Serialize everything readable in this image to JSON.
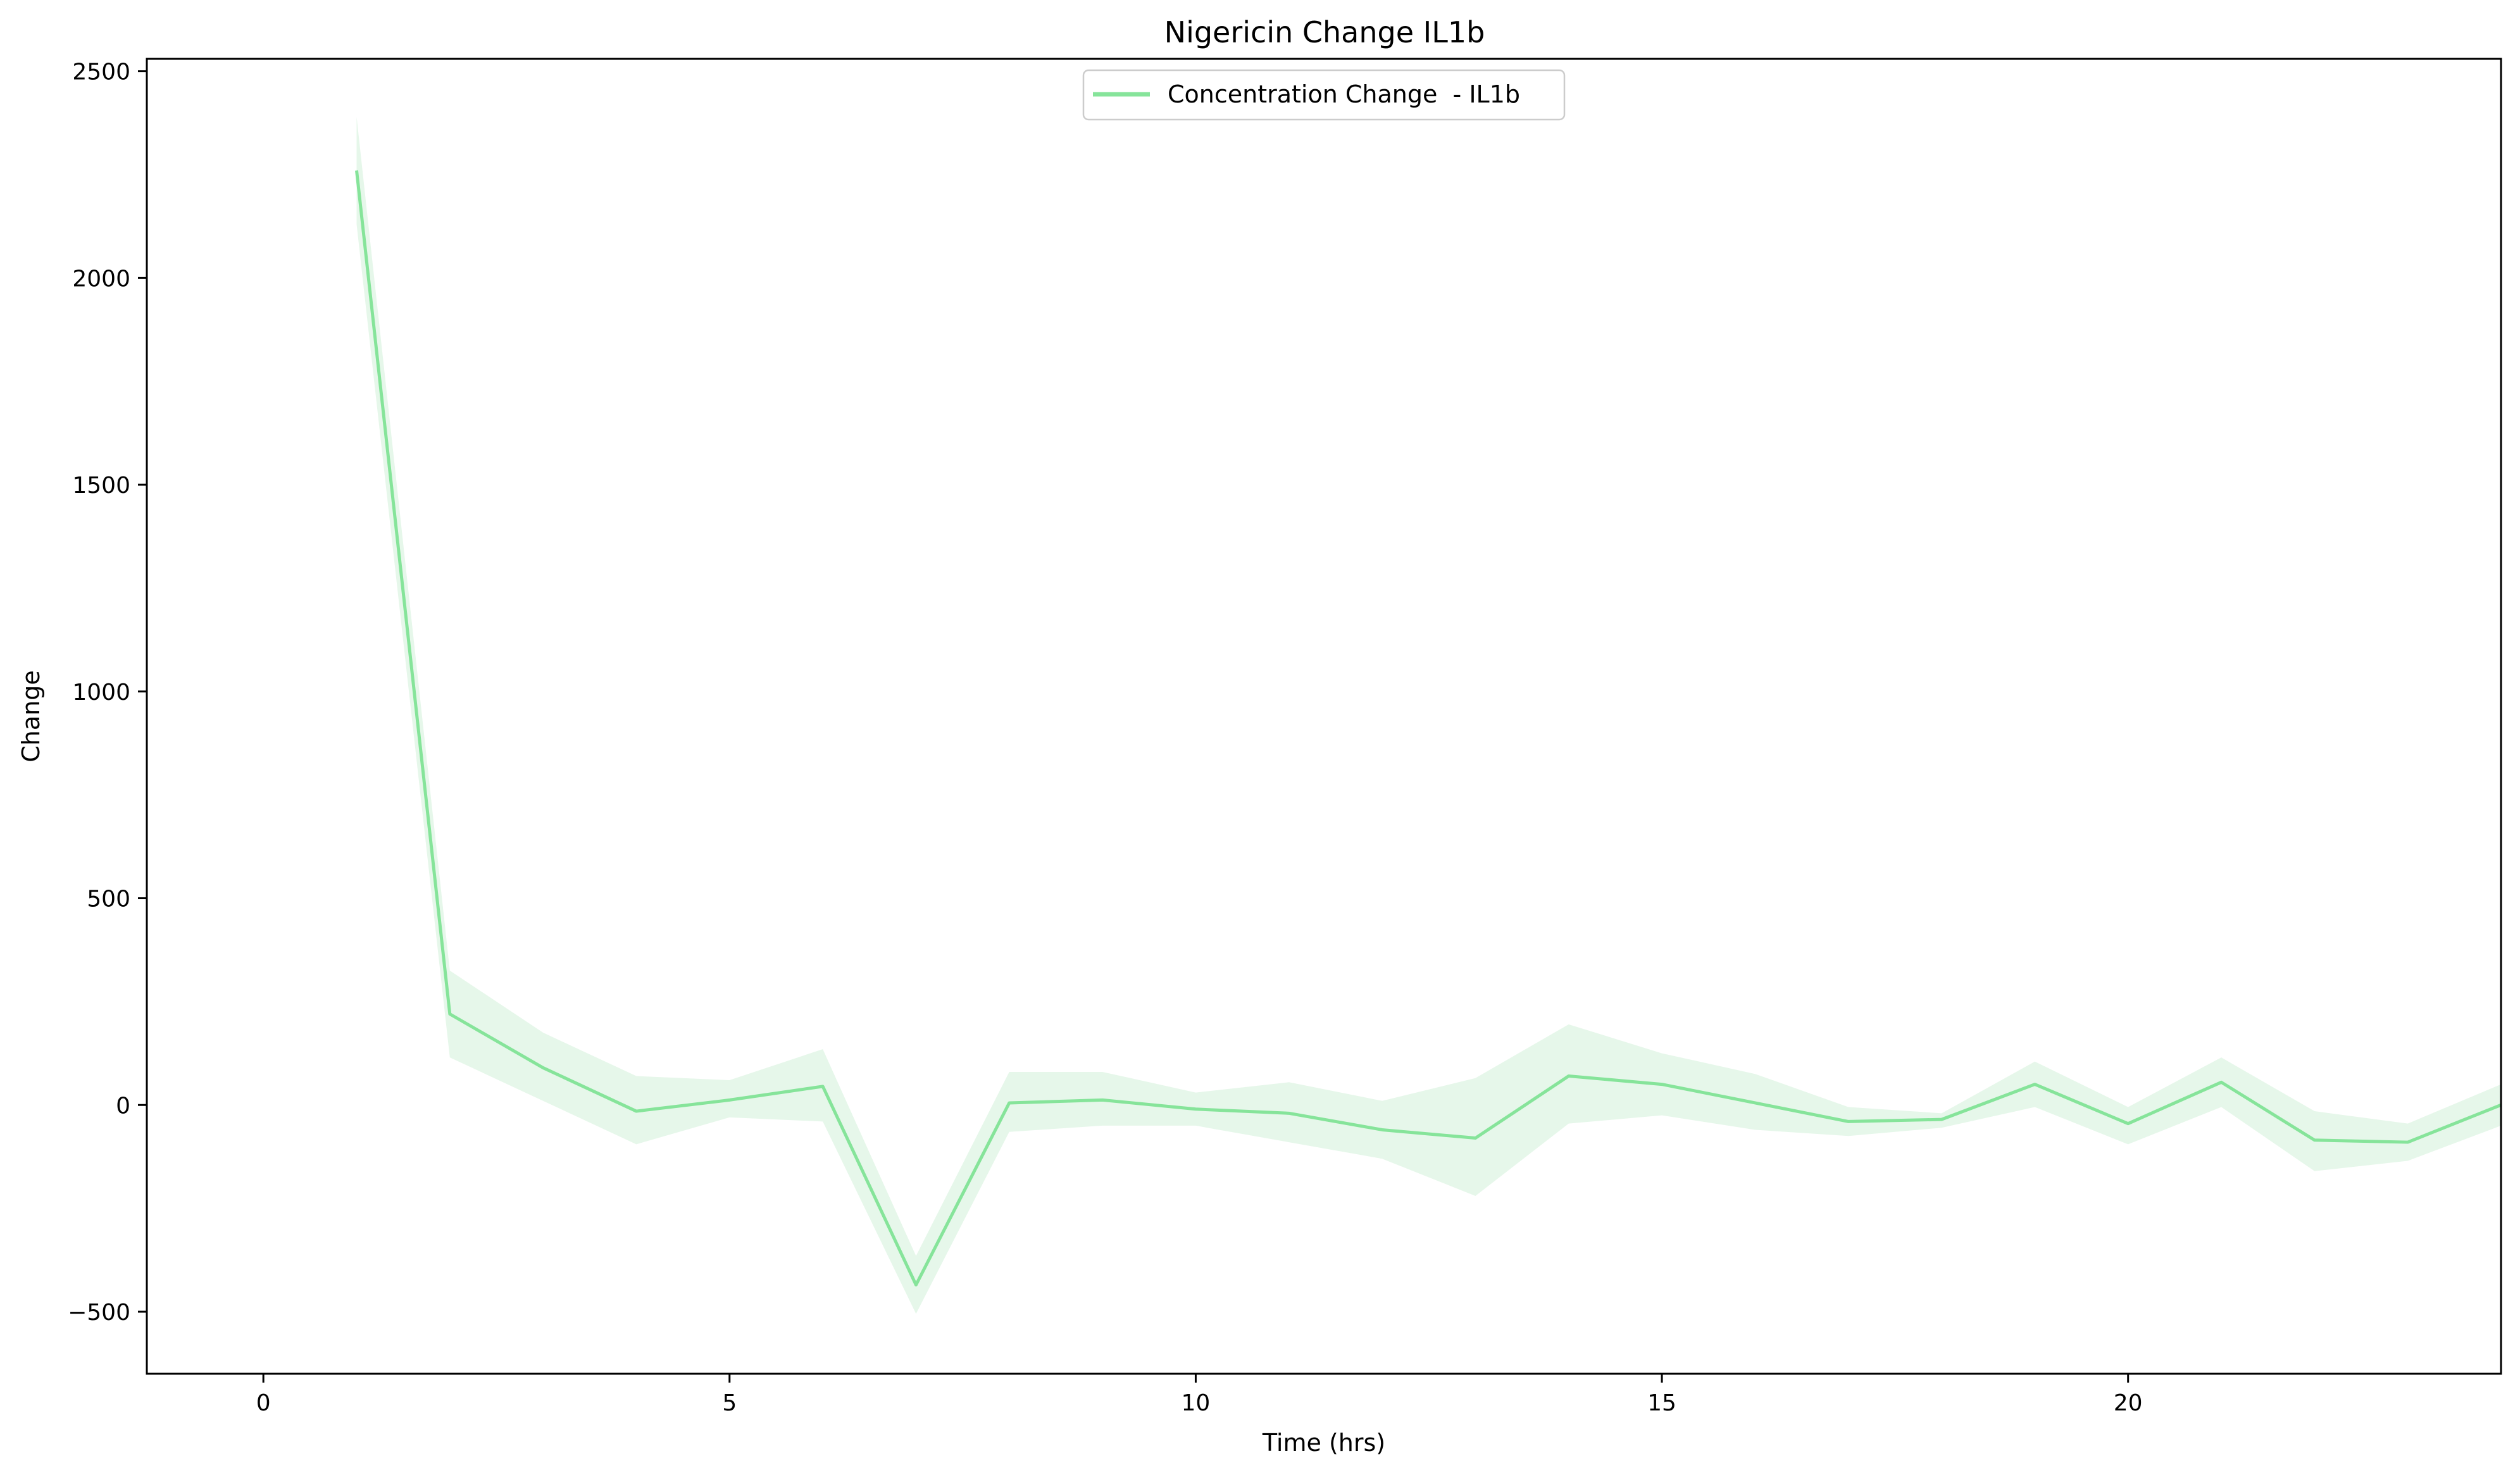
{
  "chart_data": {
    "type": "line",
    "title": "Nigericin Change IL1b",
    "xlabel": "Time (hrs)",
    "ylabel": "Change",
    "xlim": [
      -1.25,
      24
    ],
    "ylim": [
      -650,
      2530
    ],
    "xticks": [
      0,
      5,
      10,
      15,
      20
    ],
    "yticks": [
      -500,
      0,
      500,
      1000,
      1500,
      2000,
      2500
    ],
    "xtick_labels": [
      "0",
      "5",
      "10",
      "15",
      "20"
    ],
    "ytick_labels": [
      "−500",
      "0",
      "500",
      "1000",
      "1500",
      "2000",
      "2500"
    ],
    "grid": false,
    "legend_position": "top-center",
    "series": [
      {
        "name": "Concentration Change  - IL1b",
        "color": "#86e49a",
        "band_color": "#e6f7ea",
        "x": [
          1,
          2,
          3,
          4,
          5,
          6,
          7,
          8,
          9,
          10,
          11,
          12,
          13,
          14,
          15,
          16,
          17,
          18,
          19,
          20,
          21,
          22,
          23,
          24
        ],
        "y": [
          2260,
          220,
          90,
          -15,
          12,
          45,
          -435,
          5,
          12,
          -10,
          -20,
          -60,
          -80,
          70,
          50,
          5,
          -40,
          -35,
          50,
          -45,
          55,
          -85,
          -90,
          0
        ],
        "lower": [
          2130,
          115,
          10,
          -95,
          -30,
          -40,
          -505,
          -65,
          -50,
          -50,
          -90,
          -130,
          -220,
          -45,
          -25,
          -60,
          -75,
          -55,
          -5,
          -95,
          -5,
          -160,
          -135,
          -50
        ],
        "upper": [
          2390,
          325,
          175,
          70,
          60,
          135,
          -365,
          80,
          80,
          30,
          55,
          10,
          65,
          195,
          125,
          75,
          -5,
          -20,
          105,
          -5,
          115,
          -15,
          -45,
          50
        ]
      }
    ]
  }
}
